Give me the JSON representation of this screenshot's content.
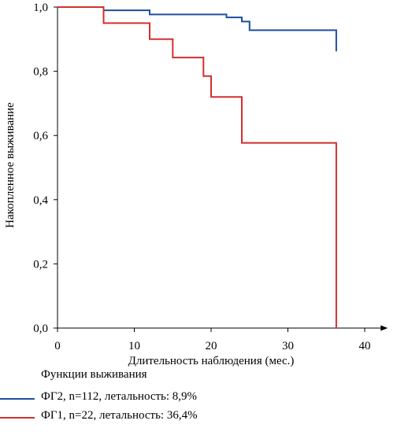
{
  "chart_data": {
    "type": "line",
    "step": true,
    "xlabel": "Длительность наблюдения (мес.)",
    "ylabel": "Накопленное выживание",
    "xlim": [
      0,
      43
    ],
    "ylim": [
      0,
      1.0
    ],
    "x_ticks": [
      "0",
      "10",
      "20",
      "30",
      "40"
    ],
    "y_ticks": [
      "0,0",
      "0,2",
      "0,4",
      "0,6",
      "0,8",
      "1,0"
    ],
    "grid": false,
    "series": [
      {
        "name": "ФГ2, n=112, летальность: 8,9%",
        "color": "#1f4e9e",
        "points": [
          [
            0,
            1.0
          ],
          [
            6,
            1.0
          ],
          [
            6,
            0.99
          ],
          [
            12,
            0.99
          ],
          [
            12,
            0.977
          ],
          [
            22,
            0.977
          ],
          [
            22,
            0.968
          ],
          [
            24,
            0.968
          ],
          [
            24,
            0.955
          ],
          [
            25,
            0.955
          ],
          [
            25,
            0.928
          ],
          [
            36.3,
            0.928
          ],
          [
            36.3,
            0.862
          ]
        ]
      },
      {
        "name": "ФГ1, n=22, летальность: 36,4%",
        "color": "#d32f2f",
        "points": [
          [
            0,
            1.0
          ],
          [
            6,
            1.0
          ],
          [
            6,
            0.95
          ],
          [
            12,
            0.95
          ],
          [
            12,
            0.9
          ],
          [
            15,
            0.9
          ],
          [
            15,
            0.843
          ],
          [
            19,
            0.843
          ],
          [
            19,
            0.785
          ],
          [
            20,
            0.785
          ],
          [
            20,
            0.72
          ],
          [
            24,
            0.72
          ],
          [
            24,
            0.577
          ],
          [
            36.3,
            0.577
          ],
          [
            36.3,
            0.0
          ]
        ]
      }
    ]
  },
  "legend": {
    "title": "Функции выживания"
  }
}
